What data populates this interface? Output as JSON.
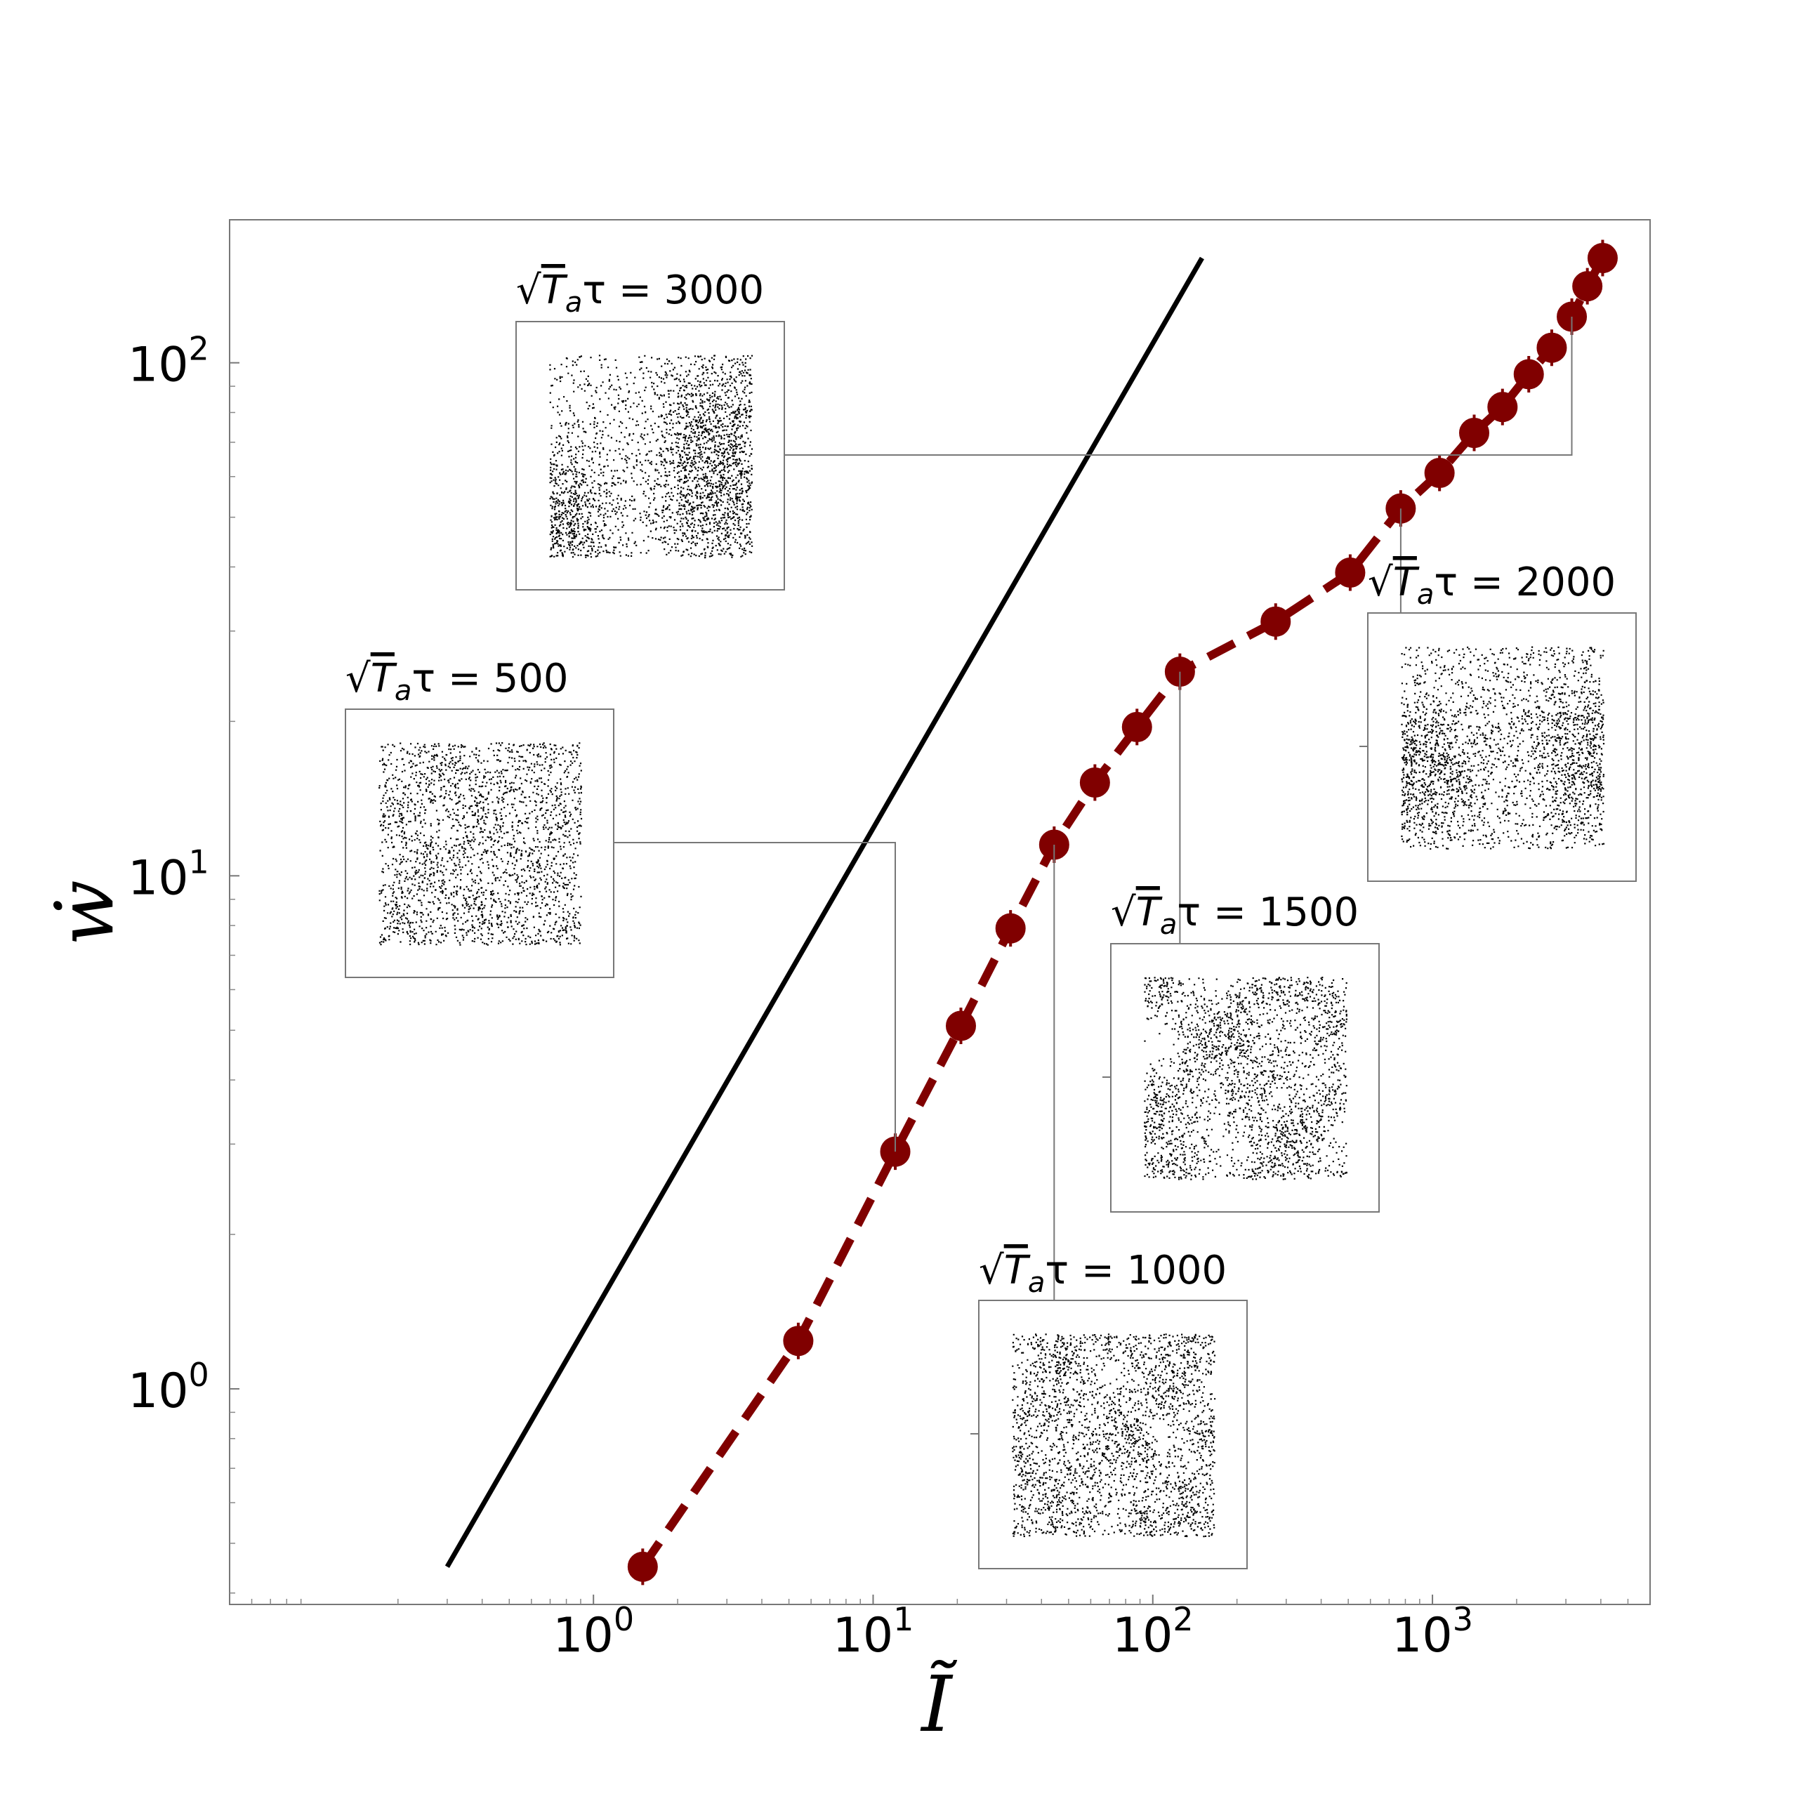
{
  "chart_data": {
    "type": "scatter",
    "scale": {
      "x": "log",
      "y": "log"
    },
    "xlim": [
      0.05,
      6000
    ],
    "ylim": [
      0.38,
      190
    ],
    "xlabel": "Ĩ",
    "ylabel": "ẇ",
    "x_ticks": [
      {
        "value": 1,
        "base": "10",
        "exp": "0"
      },
      {
        "value": 10,
        "base": "10",
        "exp": "1"
      },
      {
        "value": 100,
        "base": "10",
        "exp": "2"
      },
      {
        "value": 1000,
        "base": "10",
        "exp": "3"
      }
    ],
    "y_ticks": [
      {
        "value": 1,
        "base": "10",
        "exp": "0"
      },
      {
        "value": 10,
        "base": "10",
        "exp": "1"
      },
      {
        "value": 100,
        "base": "10",
        "exp": "2"
      }
    ],
    "series": [
      {
        "style": "dashed-line-with-markers",
        "color": "#800000",
        "x": [
          1.5,
          5.4,
          12,
          20.6,
          31,
          44.4,
          62.1,
          87.8,
          125,
          275,
          508,
          770,
          1060,
          1410,
          1780,
          2210,
          2670,
          3150,
          3580,
          4060
        ],
        "y": [
          0.45,
          1.24,
          2.9,
          5.1,
          7.9,
          11.5,
          15.2,
          19.5,
          25,
          31.3,
          39,
          52,
          61,
          73,
          82,
          95,
          107,
          123,
          141,
          160
        ]
      },
      {
        "style": "solid-line",
        "color": "#000000",
        "x": [
          0.3,
          150
        ],
        "y": [
          0.45,
          160
        ]
      }
    ],
    "insets": [
      {
        "label_prefix": "√",
        "label_expr": "T",
        "label_sub": "a",
        "label_rest": "τ = 3000",
        "anchor_x": 3150,
        "anchor_y": 123,
        "texture": "clustered-two-blobs"
      },
      {
        "label_prefix": "√",
        "label_expr": "T",
        "label_sub": "a",
        "label_rest": "τ = 500",
        "anchor_x": 12,
        "anchor_y": 2.9,
        "texture": "uniform"
      },
      {
        "label_prefix": "√",
        "label_expr": "T",
        "label_sub": "a",
        "label_rest": "τ = 2000",
        "anchor_x": 770,
        "anchor_y": 52,
        "texture": "clustered-bowtie"
      },
      {
        "label_prefix": "√",
        "label_expr": "T",
        "label_sub": "a",
        "label_rest": "τ = 1500",
        "anchor_x": 125,
        "anchor_y": 25,
        "texture": "patchy"
      },
      {
        "label_prefix": "√",
        "label_expr": "T",
        "label_sub": "a",
        "label_rest": "τ = 1000",
        "anchor_x": 44.4,
        "anchor_y": 11.5,
        "texture": "patchy-light"
      }
    ]
  }
}
